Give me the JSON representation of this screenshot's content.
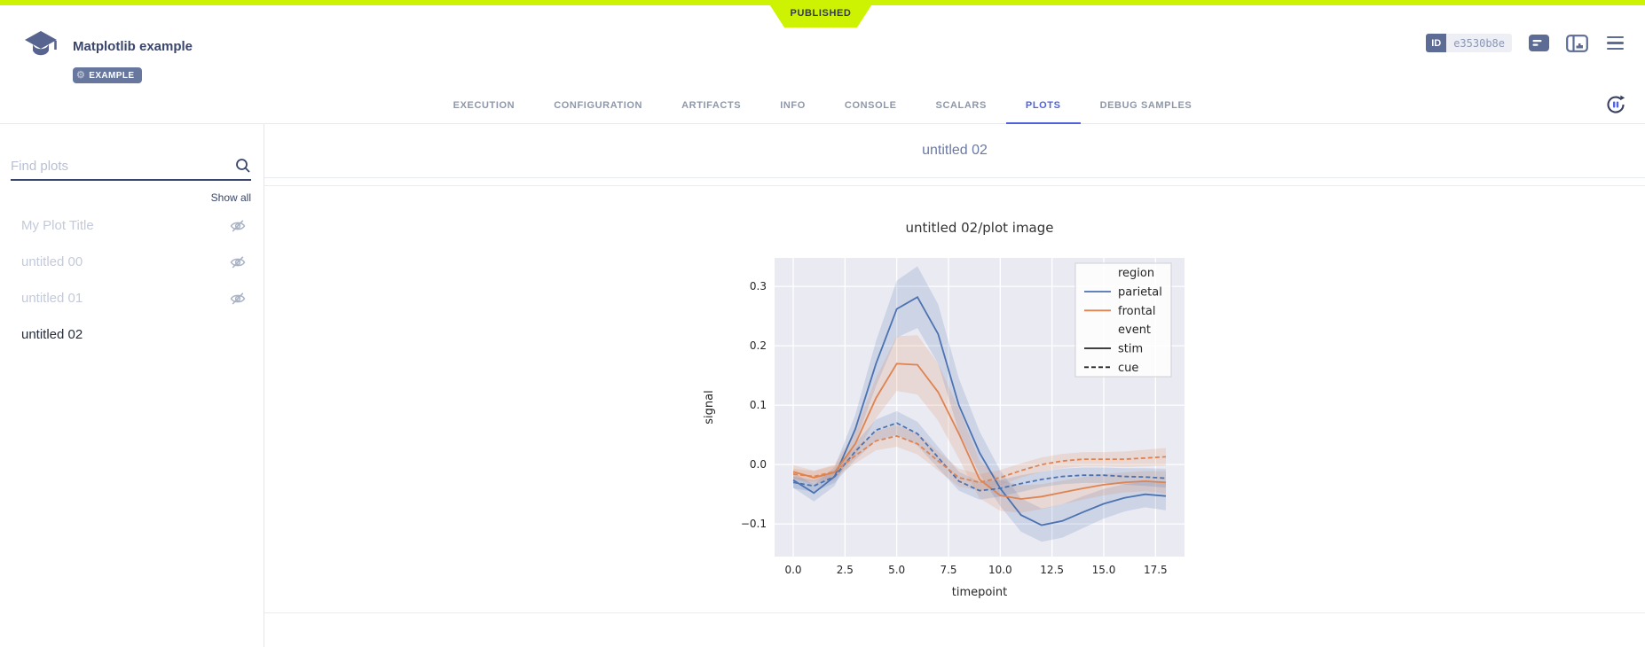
{
  "statusbar": {
    "published_label": "PUBLISHED",
    "color": "#cdf303"
  },
  "header": {
    "title": "Matplotlib example",
    "tag": "EXAMPLE",
    "id_label": "ID",
    "id_value": "e3530b8e"
  },
  "tabs": [
    {
      "label": "EXECUTION",
      "active": false
    },
    {
      "label": "CONFIGURATION",
      "active": false
    },
    {
      "label": "ARTIFACTS",
      "active": false
    },
    {
      "label": "INFO",
      "active": false
    },
    {
      "label": "CONSOLE",
      "active": false
    },
    {
      "label": "SCALARS",
      "active": false
    },
    {
      "label": "PLOTS",
      "active": true
    },
    {
      "label": "DEBUG SAMPLES",
      "active": false
    }
  ],
  "sidebar": {
    "search_placeholder": "Find plots",
    "show_all": "Show all",
    "items": [
      {
        "label": "My Plot Title",
        "hidden": true,
        "selected": false
      },
      {
        "label": "untitled 00",
        "hidden": true,
        "selected": false
      },
      {
        "label": "untitled 01",
        "hidden": true,
        "selected": false
      },
      {
        "label": "untitled 02",
        "hidden": false,
        "selected": true
      }
    ]
  },
  "main": {
    "section_title": "untitled 02"
  },
  "colors": {
    "accent_blue": "#4f63e0",
    "slate": "#5d6c95",
    "seaborn_blue": "#4c72b0",
    "seaborn_orange": "#dd8452",
    "plot_bg": "#eaeaf2"
  },
  "chart_data": {
    "type": "line",
    "title": "untitled 02/plot image",
    "xlabel": "timepoint",
    "ylabel": "signal",
    "xlim": [
      -0.9,
      18.9
    ],
    "ylim": [
      -0.155,
      0.348
    ],
    "xticks": [
      0.0,
      2.5,
      5.0,
      7.5,
      10.0,
      12.5,
      15.0,
      17.5
    ],
    "yticks": [
      -0.1,
      0.0,
      0.1,
      0.2,
      0.3
    ],
    "grid": true,
    "legend_position": "upper right",
    "x": [
      0,
      1,
      2,
      3,
      4,
      5,
      6,
      7,
      8,
      9,
      10,
      11,
      12,
      13,
      14,
      15,
      16,
      17,
      18
    ],
    "series": [
      {
        "name": "parietal-stim",
        "color": "#4c72b0",
        "dash": false,
        "values": [
          -0.026,
          -0.048,
          -0.02,
          0.06,
          0.17,
          0.262,
          0.282,
          0.22,
          0.1,
          0.02,
          -0.04,
          -0.085,
          -0.102,
          -0.095,
          -0.08,
          -0.066,
          -0.056,
          -0.05,
          -0.053
        ],
        "ci": [
          0.013,
          0.014,
          0.016,
          0.024,
          0.038,
          0.048,
          0.052,
          0.05,
          0.045,
          0.036,
          0.03,
          0.028,
          0.028,
          0.028,
          0.027,
          0.025,
          0.023,
          0.022,
          0.024
        ]
      },
      {
        "name": "frontal-stim",
        "color": "#dd8452",
        "dash": false,
        "values": [
          -0.012,
          -0.022,
          -0.013,
          0.035,
          0.112,
          0.17,
          0.168,
          0.122,
          0.052,
          -0.025,
          -0.052,
          -0.058,
          -0.054,
          -0.047,
          -0.04,
          -0.034,
          -0.03,
          -0.028,
          -0.03
        ],
        "ci": [
          0.011,
          0.012,
          0.013,
          0.022,
          0.034,
          0.046,
          0.05,
          0.048,
          0.042,
          0.032,
          0.026,
          0.023,
          0.021,
          0.02,
          0.019,
          0.018,
          0.017,
          0.017,
          0.019
        ]
      },
      {
        "name": "parietal-cue",
        "color": "#4c72b0",
        "dash": true,
        "values": [
          -0.03,
          -0.036,
          -0.02,
          0.022,
          0.058,
          0.07,
          0.052,
          0.012,
          -0.028,
          -0.044,
          -0.04,
          -0.032,
          -0.025,
          -0.02,
          -0.018,
          -0.018,
          -0.02,
          -0.021,
          -0.023
        ],
        "ci": [
          0.01,
          0.01,
          0.011,
          0.014,
          0.018,
          0.02,
          0.02,
          0.018,
          0.016,
          0.015,
          0.014,
          0.014,
          0.013,
          0.013,
          0.013,
          0.013,
          0.014,
          0.015,
          0.016
        ]
      },
      {
        "name": "frontal-cue",
        "color": "#dd8452",
        "dash": true,
        "values": [
          -0.016,
          -0.02,
          -0.012,
          0.015,
          0.04,
          0.048,
          0.035,
          0.006,
          -0.022,
          -0.03,
          -0.022,
          -0.01,
          0.0,
          0.006,
          0.009,
          0.009,
          0.009,
          0.011,
          0.013
        ],
        "ci": [
          0.009,
          0.009,
          0.01,
          0.013,
          0.016,
          0.018,
          0.018,
          0.016,
          0.015,
          0.014,
          0.013,
          0.012,
          0.012,
          0.012,
          0.012,
          0.012,
          0.013,
          0.014,
          0.015
        ]
      }
    ],
    "legend": [
      {
        "label": "region",
        "type": "header"
      },
      {
        "label": "parietal",
        "type": "line",
        "color": "#4c72b0",
        "dash": false
      },
      {
        "label": "frontal",
        "type": "line",
        "color": "#dd8452",
        "dash": false
      },
      {
        "label": "event",
        "type": "header"
      },
      {
        "label": "stim",
        "type": "line",
        "color": "#262626",
        "dash": false
      },
      {
        "label": "cue",
        "type": "line",
        "color": "#262626",
        "dash": true
      }
    ]
  }
}
